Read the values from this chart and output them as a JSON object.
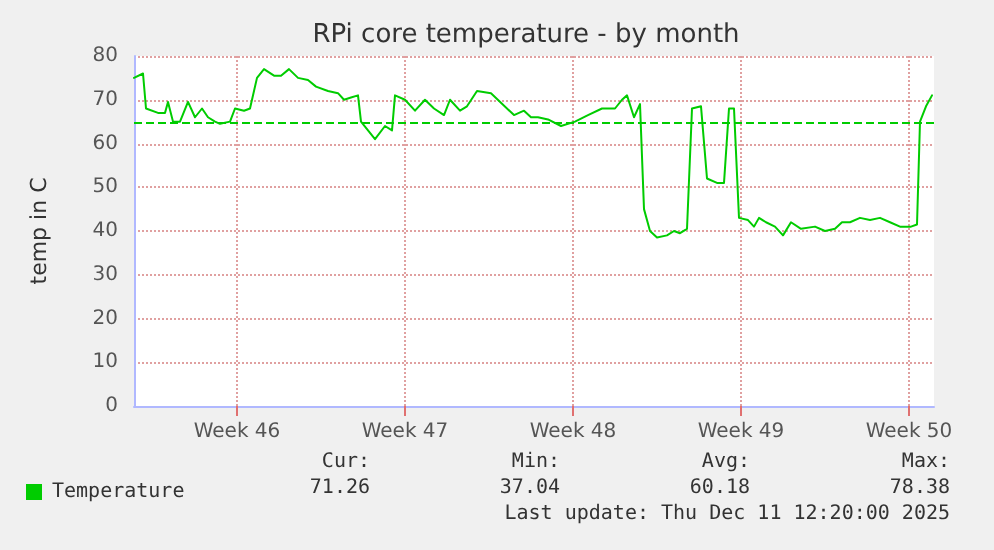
{
  "chart_data": {
    "type": "line",
    "title": "RPi core temperature - by month",
    "ylabel": "temp in C",
    "xlim": [
      "2025-11-09T05:00",
      "2025-12-12T13:00"
    ],
    "xticks": [
      {
        "value": "2025-11-13T12:00",
        "label": "Week 46"
      },
      {
        "value": "2025-11-20T12:00",
        "label": "Week 47"
      },
      {
        "value": "2025-11-27T12:00",
        "label": "Week 48"
      },
      {
        "value": "2025-12-04T12:00",
        "label": "Week 49"
      },
      {
        "value": "2025-12-11T12:00",
        "label": "Week 50"
      }
    ],
    "ylim": [
      0,
      80
    ],
    "yticks": [
      0,
      10,
      20,
      30,
      40,
      50,
      60,
      70,
      80
    ],
    "grid": true,
    "legend": "bottom left",
    "marker": "none",
    "line_style": "solid",
    "series": [
      {
        "name": "Temperature",
        "color": "#00cc00",
        "x": [
          "2025-11-09T05:00",
          "2025-11-09T14:00",
          "2025-11-09T17:00",
          "2025-11-10T05:00",
          "2025-11-10T12:00",
          "2025-11-10T15:00",
          "2025-11-10T20:00",
          "2025-11-11T03:00",
          "2025-11-11T11:00",
          "2025-11-11T18:00",
          "2025-11-12T01:00",
          "2025-11-12T07:00",
          "2025-11-12T14:00",
          "2025-11-12T19:00",
          "2025-11-13T05:00",
          "2025-11-13T10:00",
          "2025-11-13T19:00",
          "2025-11-14T01:00",
          "2025-11-14T08:00",
          "2025-11-14T15:00",
          "2025-11-15T01:00",
          "2025-11-15T08:00",
          "2025-11-15T16:00",
          "2025-11-16T01:00",
          "2025-11-16T11:00",
          "2025-11-16T19:00",
          "2025-11-17T07:00",
          "2025-11-17T17:00",
          "2025-11-17T23:00",
          "2025-11-18T06:00",
          "2025-11-18T13:00",
          "2025-11-18T16:00",
          "2025-11-18T23:00",
          "2025-11-19T06:00",
          "2025-11-19T16:00",
          "2025-11-19T23:00",
          "2025-11-20T02:00",
          "2025-11-20T12:00",
          "2025-11-20T22:00",
          "2025-11-21T08:00",
          "2025-11-21T17:00",
          "2025-11-22T03:00",
          "2025-11-22T09:00",
          "2025-11-22T19:00",
          "2025-11-23T02:00",
          "2025-11-23T12:00",
          "2025-11-24T02:00",
          "2025-11-25T01:00",
          "2025-11-25T11:00",
          "2025-11-25T18:00",
          "2025-11-26T01:00",
          "2025-11-26T11:00",
          "2025-11-27T00:00",
          "2025-11-27T14:00",
          "2025-11-28T03:00",
          "2025-11-28T17:00",
          "2025-11-29T06:00",
          "2025-11-29T13:00",
          "2025-11-29T18:00",
          "2025-11-30T01:00",
          "2025-11-30T07:00",
          "2025-11-30T11:00",
          "2025-11-30T17:00",
          "2025-12-01T00:00",
          "2025-12-01T10:00",
          "2025-12-01T17:00",
          "2025-12-01T23:00",
          "2025-12-02T06:00",
          "2025-12-02T11:00",
          "2025-12-02T20:00",
          "2025-12-03T02:00",
          "2025-12-03T12:00",
          "2025-12-03T19:00",
          "2025-12-04T00:00",
          "2025-12-04T05:00",
          "2025-12-04T10:00",
          "2025-12-04T19:00",
          "2025-12-05T01:00",
          "2025-12-05T06:00",
          "2025-12-05T13:00",
          "2025-12-05T22:00",
          "2025-12-06T06:00",
          "2025-12-06T14:00",
          "2025-12-07T00:00",
          "2025-12-07T14:00",
          "2025-12-08T00:00",
          "2025-12-08T10:00",
          "2025-12-08T17:00",
          "2025-12-09T01:00",
          "2025-12-09T11:00",
          "2025-12-09T21:00",
          "2025-12-10T07:00",
          "2025-12-10T17:00",
          "2025-12-11T03:00",
          "2025-12-11T14:00",
          "2025-12-11T20:00",
          "2025-12-11T23:00",
          "2025-12-12T05:00",
          "2025-12-12T11:00"
        ],
        "values": [
          75,
          76,
          68,
          67,
          67,
          69.5,
          65,
          65,
          69.5,
          66,
          68,
          66,
          65,
          64.5,
          65,
          68,
          67.5,
          68,
          75,
          77,
          75.5,
          75.5,
          77,
          75,
          74.5,
          73,
          72,
          71.5,
          70,
          70.5,
          71,
          65,
          63,
          61,
          64,
          63,
          71,
          70,
          67.5,
          70,
          68,
          66.5,
          70,
          67.5,
          68.5,
          72,
          71.5,
          66.5,
          67.5,
          66,
          66,
          65.5,
          64,
          65,
          66.5,
          68,
          68,
          70,
          71,
          66,
          69,
          45,
          40,
          38.5,
          39,
          40,
          39.5,
          40.5,
          68,
          68.5,
          52,
          51,
          51,
          68,
          68,
          43,
          42.5,
          41,
          43,
          42,
          41,
          39,
          42,
          40.5,
          41,
          40,
          40.5,
          42,
          42,
          43,
          42.5,
          43,
          42,
          41,
          41,
          41.5,
          65,
          68.5,
          71
        ]
      }
    ],
    "ref_lines": [
      {
        "axis": "y",
        "value": 65,
        "color": "#00cc00",
        "line_style": "dashed"
      }
    ],
    "annotations": [
      "Cur:",
      "71.26",
      "Min:",
      "37.04",
      "Avg:",
      "60.18",
      "Max:",
      "78.38",
      "Last update: Thu Dec 11 12:20:00 2025"
    ]
  }
}
